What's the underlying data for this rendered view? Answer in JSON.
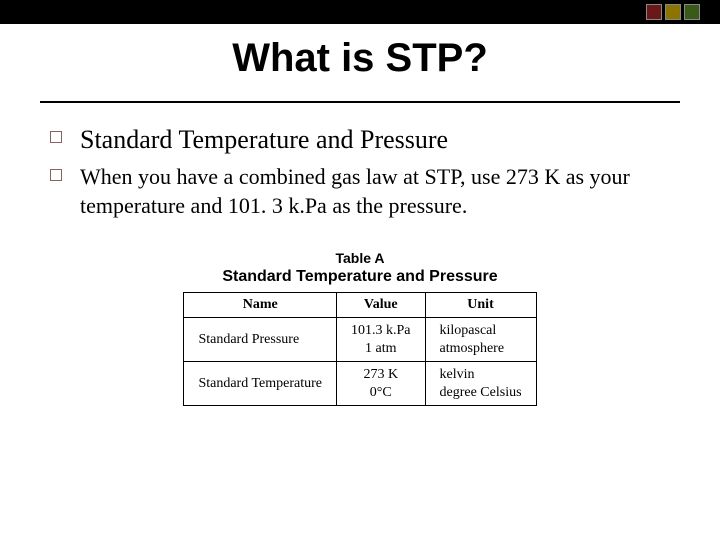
{
  "title": "What is STP?",
  "bullets": {
    "b1": "Standard Temperature and Pressure",
    "b2": "When you have a combined gas law at STP, use 273 K as your temperature and 101. 3 k.Pa as the pressure."
  },
  "table": {
    "heading": "Table A",
    "subheading": "Standard Temperature and Pressure",
    "headers": {
      "name": "Name",
      "value": "Value",
      "unit": "Unit"
    },
    "rows": [
      {
        "name": "Standard Pressure",
        "value_line1": "101.3 k.Pa",
        "value_line2": "1 atm",
        "unit_line1": "kilopascal",
        "unit_line2": "atmosphere"
      },
      {
        "name": "Standard Temperature",
        "value_line1": "273 K",
        "value_line2": "0°C",
        "unit_line1": "kelvin",
        "unit_line2": "degree Celsius"
      }
    ]
  },
  "colors": {
    "top_bar": "#000000",
    "square1": "#6b1818",
    "square2": "#8b7500",
    "square3": "#3a5a1a",
    "bullet_border": "#8a6060"
  }
}
